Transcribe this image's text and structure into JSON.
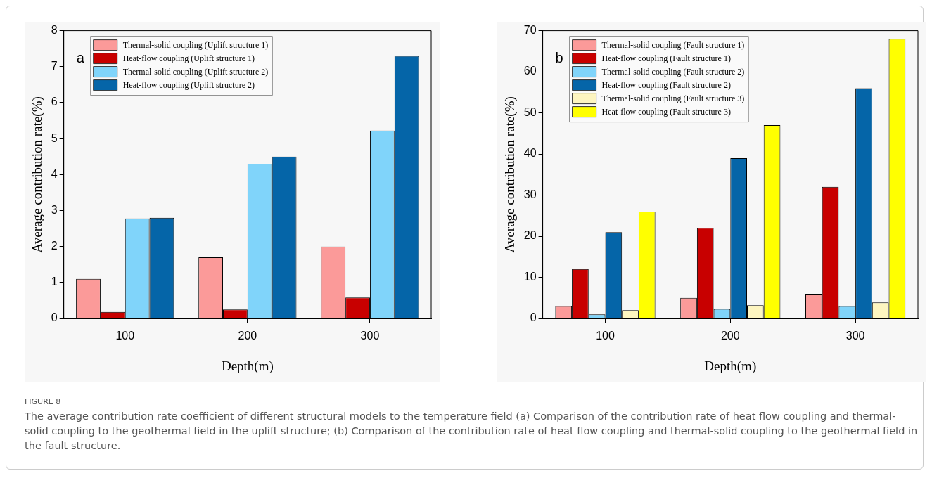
{
  "chart_data": [
    {
      "type": "bar",
      "title": "a",
      "xlabel": "Depth(m)",
      "ylabel": "Average contribution rate(%)",
      "categories": [
        "100",
        "200",
        "300"
      ],
      "ylim": [
        0,
        8
      ],
      "yticks": [
        0,
        1,
        2,
        3,
        4,
        5,
        6,
        7,
        8
      ],
      "grid": false,
      "legend": "top left",
      "series": [
        {
          "name": "Thermal-solid coupling (Uplift structure 1)",
          "color": "#fb9a99",
          "values": [
            1.1,
            1.7,
            2.0
          ]
        },
        {
          "name": "Heat-flow coupling (Uplift structure 1)",
          "color": "#c80000",
          "values": [
            0.18,
            0.25,
            0.58
          ]
        },
        {
          "name": "Thermal-solid coupling (Uplift structure 2)",
          "color": "#80d4fa",
          "values": [
            2.78,
            4.3,
            5.22
          ]
        },
        {
          "name": "Heat-flow coupling (Uplift structure 2)",
          "color": "#0565a8",
          "values": [
            2.8,
            4.5,
            7.3
          ]
        }
      ],
      "annotations": [
        "FIGURE 8",
        "The average contribution rate coefficient of different structural models to the temperature field (a) Comparison of the contribution rate of heat flow coupling and thermal-solid coupling to the geothermal field in the uplift structure; (b) Comparison of the contribution rate of heat flow coupling and thermal-solid coupling to the geothermal field in the fault structure."
      ]
    },
    {
      "type": "bar",
      "title": "b",
      "xlabel": "Depth(m)",
      "ylabel": "Average contribution rate(%)",
      "categories": [
        "100",
        "200",
        "300"
      ],
      "ylim": [
        0,
        70
      ],
      "yticks": [
        0,
        10,
        20,
        30,
        40,
        50,
        60,
        70
      ],
      "grid": false,
      "legend": "top left",
      "series": [
        {
          "name": "Thermal-solid coupling (Fault structure 1)",
          "color": "#fb9a99",
          "values": [
            3,
            5,
            6
          ]
        },
        {
          "name": "Heat-flow coupling (Fault structure 1)",
          "color": "#c80000",
          "values": [
            12,
            22,
            32
          ]
        },
        {
          "name": "Thermal-solid coupling (Fault structure 2)",
          "color": "#80d4fa",
          "values": [
            1,
            2.3,
            3
          ]
        },
        {
          "name": "Heat-flow coupling (Fault structure 2)",
          "color": "#0565a8",
          "values": [
            21,
            39,
            56
          ]
        },
        {
          "name": "Thermal-solid coupling (Fault structure 3)",
          "color": "#fdf5c0",
          "values": [
            2,
            3.2,
            3.9
          ]
        },
        {
          "name": "Heat-flow coupling (Fault structure 3)",
          "color": "#ffff00",
          "values": [
            26,
            47,
            68
          ]
        }
      ]
    }
  ]
}
